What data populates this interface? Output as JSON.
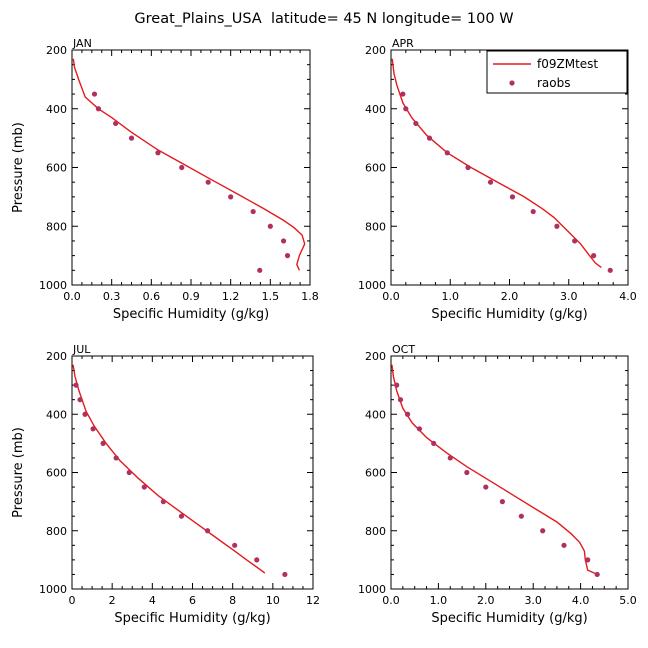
{
  "title": "Great_Plains_USA  latitude= 45 N longitude= 100 W",
  "legend": {
    "model_label": "f09ZMtest",
    "obs_label": "raobs"
  },
  "colors": {
    "model": "#e41a1c",
    "obs": "#b03060",
    "axis": "#000000"
  },
  "chart_data": [
    {
      "type": "line",
      "panel": "JAN",
      "xlabel": "Specific Humidity (g/kg)",
      "ylabel": "Pressure (mb)",
      "xlim": [
        0,
        1.8
      ],
      "ylim": [
        1000,
        200
      ],
      "xticks": [
        0.0,
        0.3,
        0.6,
        0.9,
        1.2,
        1.5,
        1.8
      ],
      "xtick_labels": [
        "0.0",
        "0.3",
        "0.6",
        "0.9",
        "1.2",
        "1.5",
        "1.8"
      ],
      "yticks": [
        200,
        400,
        600,
        800,
        1000
      ],
      "ytick_labels": [
        "200",
        "400",
        "600",
        "800",
        "1000"
      ],
      "series": [
        {
          "kind": "line",
          "x": [
            0.01,
            0.02,
            0.05,
            0.1,
            0.2,
            0.3,
            0.45,
            0.65,
            0.85,
            1.05,
            1.25,
            1.45,
            1.6,
            1.68,
            1.74,
            1.76,
            1.72,
            1.7,
            1.72
          ],
          "y": [
            230,
            260,
            300,
            360,
            400,
            430,
            480,
            540,
            590,
            640,
            690,
            740,
            780,
            805,
            830,
            860,
            900,
            930,
            950
          ]
        },
        {
          "kind": "points",
          "x": [
            0.17,
            0.2,
            0.33,
            0.45,
            0.65,
            0.83,
            1.03,
            1.2,
            1.37,
            1.5,
            1.6,
            1.63,
            1.42
          ],
          "y": [
            350,
            400,
            450,
            500,
            550,
            600,
            650,
            700,
            750,
            800,
            850,
            900,
            950
          ]
        }
      ]
    },
    {
      "type": "line",
      "panel": "APR",
      "xlabel": "Specific Humidity (g/kg)",
      "ylabel": "",
      "xlim": [
        0,
        4.0
      ],
      "ylim": [
        1000,
        200
      ],
      "xticks": [
        0.0,
        1.0,
        2.0,
        3.0,
        4.0
      ],
      "xtick_labels": [
        "0.0",
        "1.0",
        "2.0",
        "3.0",
        "4.0"
      ],
      "yticks": [
        200,
        400,
        600,
        800,
        1000
      ],
      "ytick_labels": [
        "200",
        "400",
        "600",
        "800",
        "1000"
      ],
      "series": [
        {
          "kind": "line",
          "x": [
            0.02,
            0.05,
            0.1,
            0.2,
            0.35,
            0.6,
            0.95,
            1.35,
            1.8,
            2.25,
            2.55,
            2.75,
            3.0,
            3.2,
            3.35,
            3.45,
            3.55
          ],
          "y": [
            230,
            280,
            320,
            380,
            430,
            490,
            550,
            600,
            650,
            700,
            740,
            770,
            820,
            860,
            900,
            925,
            940
          ]
        },
        {
          "kind": "points",
          "x": [
            0.2,
            0.25,
            0.42,
            0.65,
            0.95,
            1.3,
            1.68,
            2.05,
            2.4,
            2.8,
            3.1,
            3.42,
            3.7
          ],
          "y": [
            350,
            400,
            450,
            500,
            550,
            600,
            650,
            700,
            750,
            800,
            850,
            900,
            950
          ]
        }
      ]
    },
    {
      "type": "line",
      "panel": "JUL",
      "xlabel": "Specific Humidity (g/kg)",
      "ylabel": "Pressure (mb)",
      "xlim": [
        0,
        12
      ],
      "ylim": [
        1000,
        200
      ],
      "xticks": [
        0,
        2,
        4,
        6,
        8,
        10,
        12
      ],
      "xtick_labels": [
        "0",
        "2",
        "4",
        "6",
        "8",
        "10",
        "12"
      ],
      "yticks": [
        200,
        400,
        600,
        800,
        1000
      ],
      "ytick_labels": [
        "200",
        "400",
        "600",
        "800",
        "1000"
      ],
      "series": [
        {
          "kind": "line",
          "x": [
            0.05,
            0.15,
            0.35,
            0.7,
            1.1,
            1.7,
            2.4,
            3.3,
            4.3,
            5.3,
            6.3,
            7.3,
            8.1,
            8.7,
            9.3,
            9.6
          ],
          "y": [
            230,
            270,
            320,
            390,
            440,
            500,
            560,
            620,
            680,
            730,
            780,
            830,
            870,
            900,
            930,
            945
          ]
        },
        {
          "kind": "points",
          "x": [
            0.2,
            0.4,
            0.65,
            1.05,
            1.55,
            2.2,
            2.85,
            3.6,
            4.55,
            5.45,
            6.75,
            8.1,
            9.2,
            10.6
          ],
          "y": [
            300,
            350,
            400,
            450,
            500,
            550,
            600,
            650,
            700,
            750,
            800,
            850,
            900,
            950
          ]
        }
      ]
    },
    {
      "type": "line",
      "panel": "OCT",
      "xlabel": "Specific Humidity (g/kg)",
      "ylabel": "",
      "xlim": [
        0,
        5.0
      ],
      "ylim": [
        1000,
        200
      ],
      "xticks": [
        0.0,
        1.0,
        2.0,
        3.0,
        4.0,
        5.0
      ],
      "xtick_labels": [
        "0.0",
        "1.0",
        "2.0",
        "3.0",
        "4.0",
        "5.0"
      ],
      "yticks": [
        200,
        400,
        600,
        800,
        1000
      ],
      "ytick_labels": [
        "200",
        "400",
        "600",
        "800",
        "1000"
      ],
      "series": [
        {
          "kind": "line",
          "x": [
            0.02,
            0.05,
            0.12,
            0.25,
            0.45,
            0.75,
            1.15,
            1.6,
            2.1,
            2.6,
            3.1,
            3.5,
            3.8,
            3.98,
            4.08,
            4.1,
            4.15,
            4.35
          ],
          "y": [
            230,
            270,
            320,
            380,
            430,
            480,
            530,
            580,
            630,
            680,
            730,
            770,
            810,
            840,
            870,
            900,
            935,
            950
          ]
        },
        {
          "kind": "points",
          "x": [
            0.12,
            0.2,
            0.35,
            0.6,
            0.9,
            1.25,
            1.6,
            2.0,
            2.35,
            2.75,
            3.2,
            3.65,
            4.15,
            4.35
          ],
          "y": [
            300,
            350,
            400,
            450,
            500,
            550,
            600,
            650,
            700,
            750,
            800,
            850,
            900,
            950
          ]
        }
      ]
    }
  ]
}
